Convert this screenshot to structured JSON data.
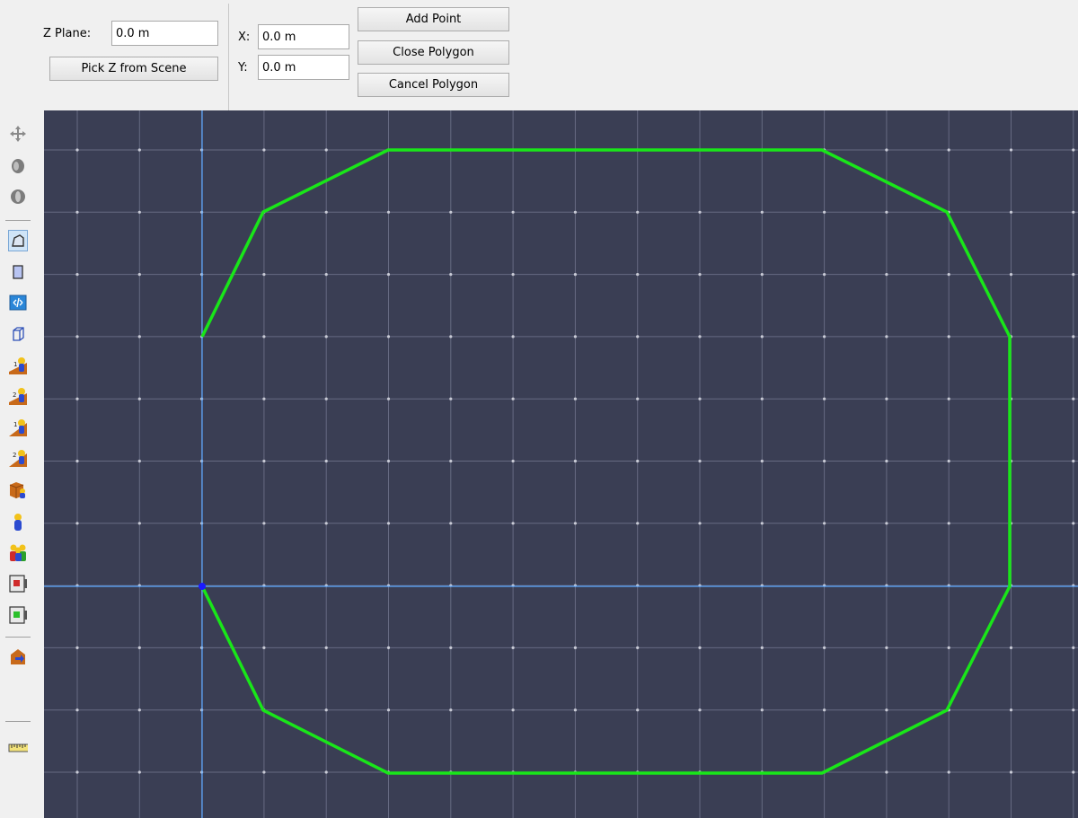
{
  "toolbar": {
    "z_plane_label": "Z Plane:",
    "z_plane_value": "0.0 m",
    "pick_z_label": "Pick Z from Scene",
    "x_label": "X:",
    "x_value": "0.0 m",
    "y_label": "Y:",
    "y_value": "0.0 m",
    "add_point_label": "Add Point",
    "close_polygon_label": "Close Polygon",
    "cancel_polygon_label": "Cancel Polygon"
  },
  "side_tools": [
    {
      "name": "pan-icon"
    },
    {
      "name": "rotate-icon"
    },
    {
      "name": "orbit-icon"
    },
    {
      "name": "draw-polygon-icon",
      "active": true
    },
    {
      "name": "draw-rectangle-icon"
    },
    {
      "name": "split-edge-icon"
    },
    {
      "name": "extrude-icon"
    },
    {
      "name": "stair-1-icon"
    },
    {
      "name": "stair-2-icon"
    },
    {
      "name": "ramp-1-icon"
    },
    {
      "name": "ramp-2-icon"
    },
    {
      "name": "obstruction-icon"
    },
    {
      "name": "occupant-icon"
    },
    {
      "name": "occupant-group-icon"
    },
    {
      "name": "door-red-icon"
    },
    {
      "name": "door-green-icon"
    },
    {
      "name": "export-icon"
    },
    {
      "name": "ruler-icon"
    }
  ],
  "colors": {
    "viewport_bg": "#3a3e54",
    "grid_line": "#6b6f86",
    "axis_line": "#5aa7ff",
    "polygon_stroke": "#19e619",
    "point_fill": "#1a1aff"
  }
}
